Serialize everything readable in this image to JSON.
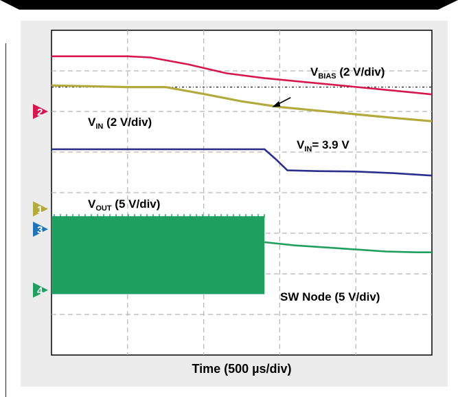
{
  "chart_data": {
    "type": "line",
    "title": "",
    "xlabel": "Time (500 µs/div)",
    "ylabel": "",
    "grid": true,
    "x_divisions": 5,
    "y_divisions": 8,
    "xlim": [
      0,
      5
    ],
    "series": [
      {
        "name": "VBIAS (2 V/div)",
        "label_main": "V",
        "label_sub": "BIAS",
        "label_rest": " (2 V/div)",
        "color": "#d6174f",
        "x": [
          0,
          0.5,
          1.0,
          1.3,
          1.8,
          2.3,
          2.8,
          3.3,
          3.8,
          4.3,
          4.8,
          5.0
        ],
        "y_div": [
          7.36,
          7.36,
          7.36,
          7.33,
          7.16,
          6.94,
          6.82,
          6.73,
          6.64,
          6.55,
          6.46,
          6.42
        ]
      },
      {
        "name": "VIN (2 V/div)",
        "label_main": "V",
        "label_sub": "IN",
        "label_rest": " (2 V/div)",
        "color": "#b3aa3d",
        "x": [
          0,
          0.5,
          1.0,
          1.5,
          2.0,
          2.5,
          3.0,
          3.5,
          4.0,
          4.5,
          5.0
        ],
        "y_div": [
          6.64,
          6.62,
          6.6,
          6.6,
          6.43,
          6.25,
          6.11,
          6.02,
          5.93,
          5.84,
          5.76
        ],
        "annotation": {
          "text": "= 3.9 V",
          "label_main": "V",
          "label_sub": "IN",
          "x": 2.9,
          "y_div": 6.14
        }
      },
      {
        "name": "VOUT (5 V/div)",
        "label_main": "V",
        "label_sub": "OUT",
        "label_rest": " (5 V/div)",
        "color": "#2a2e8c",
        "x": [
          0,
          0.5,
          1.0,
          1.5,
          2.0,
          2.5,
          2.8,
          2.95,
          3.1,
          3.5,
          4.0,
          4.5,
          5.0
        ],
        "y_div": [
          5.07,
          5.07,
          5.07,
          5.07,
          5.07,
          5.07,
          5.07,
          4.82,
          4.55,
          4.53,
          4.52,
          4.48,
          4.42
        ]
      },
      {
        "name": "SW Node (5 V/div)",
        "label_text": "SW Node (5 V/div)",
        "color": "#1fa060",
        "switching_until_x": 2.8,
        "switching_low_div": 1.5,
        "switching_high_div": 3.42,
        "x": [
          2.8,
          3.2,
          3.6,
          4.0,
          4.4,
          4.8,
          5.0
        ],
        "y_div": [
          2.78,
          2.7,
          2.65,
          2.6,
          2.55,
          2.53,
          2.53
        ]
      }
    ],
    "reference_markers": [
      {
        "label": "2",
        "color": "#d6174f",
        "y_div": 6.0
      },
      {
        "label": "1",
        "color": "#b3aa3d",
        "y_div": 3.6
      },
      {
        "label": "3",
        "color": "#1f75b8",
        "y_div": 3.1
      },
      {
        "label": "4",
        "color": "#1fa060",
        "y_div": 1.6
      }
    ],
    "dash_dot_reference_y_div": 6.6
  }
}
